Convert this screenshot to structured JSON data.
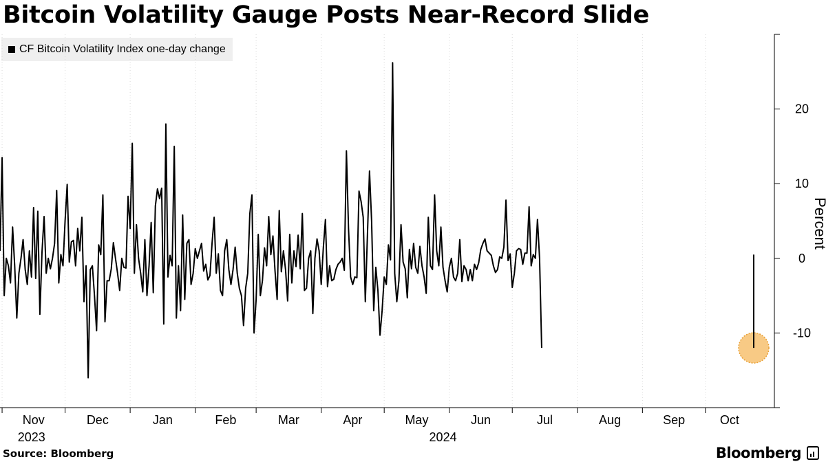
{
  "title": "Bitcoin Volatility Gauge Posts Near-Record Slide",
  "legend_label": "CF Bitcoin Volatility Index one-day change",
  "source": "Source: Bloomberg",
  "brand": "Bloomberg",
  "colors": {
    "line": "#000000",
    "highlight": "#f5b85c",
    "grid": "#d9d9d9",
    "legend_bg": "#efefef"
  },
  "chart_data": {
    "type": "line",
    "ylabel": "Percent",
    "ylim": [
      -20,
      30
    ],
    "yticks": [
      -10,
      0,
      10,
      20
    ],
    "grid": "vertical dotted lines at month boundaries",
    "legend": "top-left",
    "x_start": "2023-10-31",
    "x_end": "2024-10-24",
    "month_ticks": [
      {
        "label": "Nov",
        "date": "2023-11-01"
      },
      {
        "label": "Dec",
        "date": "2023-12-01"
      },
      {
        "label": "Jan",
        "date": "2024-01-01"
      },
      {
        "label": "Feb",
        "date": "2024-02-01"
      },
      {
        "label": "Mar",
        "date": "2024-03-01"
      },
      {
        "label": "Apr",
        "date": "2024-04-01"
      },
      {
        "label": "May",
        "date": "2024-05-01"
      },
      {
        "label": "Jun",
        "date": "2024-06-01"
      },
      {
        "label": "Jul",
        "date": "2024-07-01"
      },
      {
        "label": "Aug",
        "date": "2024-08-01"
      },
      {
        "label": "Sep",
        "date": "2024-09-01"
      },
      {
        "label": "Oct",
        "date": "2024-10-01"
      }
    ],
    "year_labels": [
      {
        "label": "2023",
        "date": "2023-11-15"
      },
      {
        "label": "2024",
        "date": "2024-05-29"
      }
    ],
    "series": [
      {
        "name": "CF Bitcoin Volatility Index one-day change",
        "x_step_days": 1,
        "values": [
          1,
          13.5,
          -5,
          0,
          -1,
          -3.3,
          4.2,
          -1,
          -8,
          -2,
          0,
          2.5,
          -1.5,
          -3.5,
          1,
          -2.5,
          6.8,
          -2.7,
          6.3,
          -7.5,
          0.8,
          5.6,
          -2,
          0,
          -1.4,
          0,
          2,
          9.1,
          -3.3,
          0.5,
          -1,
          5,
          9.9,
          -0.5,
          2.2,
          2.4,
          -1,
          4,
          1,
          5.5,
          -5.8,
          -1,
          -16,
          -1.5,
          -1,
          -5,
          -9.7,
          1.8,
          0.5,
          8.5,
          -8.5,
          -3,
          -3,
          -1.4,
          2.1,
          0,
          -2,
          -4.3,
          0,
          -1.2,
          -1.3,
          8.3,
          4,
          15.4,
          -2,
          4.5,
          0,
          -2,
          -4.5,
          2.5,
          -5,
          -1,
          4.8,
          -4.6,
          7,
          9.3,
          8,
          9.4,
          -8.8,
          18,
          -2.5,
          0.4,
          -1,
          15,
          -8,
          -1,
          -7,
          5.8,
          -5.5,
          2,
          2.5,
          -3.5,
          -2,
          1.3,
          0,
          1,
          2,
          -1.7,
          -0.8,
          -2.9,
          -2.3,
          2,
          5.5,
          -2,
          0.6,
          -4.3,
          -5,
          1,
          2.5,
          -1.5,
          -3.5,
          -1.5,
          1.5,
          -2,
          -4,
          -5,
          -9,
          -4,
          -2,
          6,
          8.5,
          -10,
          -5.5,
          3.2,
          -5,
          -3,
          1.4,
          -1,
          5.6,
          0.5,
          3,
          -1.7,
          -5.5,
          6.4,
          -1.8,
          1,
          -1.5,
          -5.7,
          3.2,
          -3.3,
          1,
          -1.1,
          3.1,
          -1.4,
          6,
          -4.3,
          -4,
          0,
          1,
          -7.4,
          0,
          2.6,
          1,
          -3.5,
          1.4,
          5.2,
          -3.8,
          -1,
          -3,
          -2.8,
          -1.5,
          -0.8,
          -0.5,
          0,
          -1.6,
          14.4,
          4,
          -2.5,
          -3.5,
          -2.5,
          -2.6,
          9,
          7.6,
          5.5,
          -5.8,
          3,
          11.7,
          5,
          -7,
          -1.2,
          -4.3,
          -10.3,
          -7,
          -2.5,
          -3.5,
          1.8,
          -0.2,
          26.2,
          -2,
          -5.8,
          -3,
          4.5,
          -0.5,
          -1.4,
          -5.3,
          1.2,
          -1.4,
          2,
          -1.2,
          -2,
          1.6,
          -1,
          -2.5,
          -4.7,
          5.5,
          -1,
          -1.5,
          8.5,
          1,
          -1,
          4.2,
          -1.2,
          -3,
          -4.5,
          -1.2,
          0,
          -2.5,
          -3,
          -2,
          2.5,
          -3.1,
          -1,
          -1.5,
          -3,
          -1.5,
          -3,
          -0.8,
          -1.5,
          -0.6,
          1.2,
          2,
          2.6,
          1,
          0.7,
          0.4,
          -1,
          -1.9,
          -1.5,
          0.2,
          0,
          1.5,
          7.8,
          -0.3,
          0.6,
          -3.9,
          -2,
          1,
          1.3,
          1.2,
          -0.8,
          0.7,
          0.7,
          6.9,
          -1,
          0.5,
          0,
          5.2,
          0,
          -12
        ]
      }
    ],
    "highlight_point": {
      "date": "2024-10-24",
      "value": -12
    }
  }
}
